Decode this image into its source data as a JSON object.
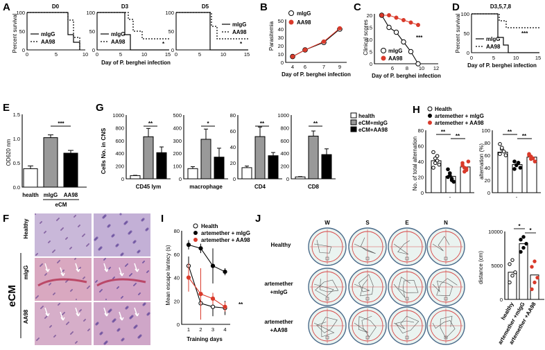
{
  "panels": {
    "A": {
      "label": "A",
      "subtitles": [
        "D0",
        "D3",
        "D5"
      ],
      "ylabel": "Percent survival",
      "xlabel": "Day of P. berghei infection",
      "yticks": [
        "0",
        "50",
        "100"
      ],
      "xticks_d0": [
        "0",
        "5",
        "10"
      ],
      "xticks_d3": [
        "0",
        "5",
        "10",
        "15"
      ],
      "legend": [
        "mIgG",
        "AA98"
      ],
      "sig": [
        "*",
        "*"
      ]
    },
    "B": {
      "label": "B",
      "ylabel": "Parasitemia",
      "xlabel": "Day of P. berghei infection",
      "yticks": [
        "0",
        "10",
        "20",
        "30",
        "40",
        "50"
      ],
      "xticks": [
        "4",
        "6",
        "7",
        "9"
      ],
      "legend": [
        "mIgG",
        "AA98"
      ]
    },
    "C": {
      "label": "C",
      "ylabel": "Clinical scores",
      "xlabel": "Day of P. berghei infection",
      "yticks": [
        "0",
        "5",
        "10",
        "15",
        "20"
      ],
      "xticks": [
        "6",
        "8",
        "10",
        "12"
      ],
      "legend": [
        "mIgG",
        "AA98"
      ],
      "sig": "***"
    },
    "D": {
      "label": "D",
      "subtitle": "D3,5,7,8",
      "ylabel": "Percent survival",
      "xlabel": "Day of P. berghei infection",
      "yticks": [
        "0",
        "50",
        "100"
      ],
      "xticks": [
        "0",
        "5",
        "10",
        "15"
      ],
      "legend": [
        "mIgG",
        "AA98"
      ],
      "sig": "***"
    },
    "E": {
      "label": "E",
      "ylabel": "OD620 nm",
      "yticks": [
        "0.0",
        "0.5",
        "1.0",
        "1.5"
      ],
      "categories": [
        "health",
        "mIgG",
        "AA98"
      ],
      "group": "eCM",
      "sig": "***"
    },
    "G": {
      "label": "G",
      "ylabel": "Cells No. in CNS",
      "legend": [
        "health",
        "eCM+mIgG",
        "eCM+AA98"
      ],
      "subplots": [
        {
          "name": "CD45 lym",
          "yticks": [
            "0",
            "200",
            "400",
            "600",
            "800",
            "1000"
          ],
          "sig": "**"
        },
        {
          "name": "macrophage",
          "yticks": [
            "0",
            "100",
            "200",
            "300",
            "400",
            "500"
          ],
          "sig": "*"
        },
        {
          "name": "CD4",
          "yticks": [
            "0",
            "20",
            "40",
            "60",
            "80"
          ],
          "sig": "**"
        },
        {
          "name": "CD8",
          "yticks": [
            "0",
            "200",
            "400",
            "600",
            "800",
            "1000"
          ],
          "sig": "**"
        }
      ]
    },
    "H": {
      "label": "H",
      "legend": [
        "Health",
        "artemether + mIgG",
        "artemether + AA98"
      ],
      "ylabel1": "No. of total alternation",
      "ylabel2": "alternation (%)",
      "yticks1": [
        "0",
        "20",
        "40",
        "60",
        "80"
      ],
      "yticks2": [
        "0",
        "20",
        "40",
        "60",
        "80",
        "100"
      ],
      "sig": [
        "**",
        "**",
        "**",
        "**"
      ]
    },
    "F": {
      "label": "F",
      "rows": [
        "Healthy",
        "mIgG",
        "AA98"
      ],
      "group": "eCM"
    },
    "I": {
      "label": "I",
      "ylabel": "Mean escape lantecy (s)",
      "xlabel": "Training days",
      "yticks": [
        "0",
        "20",
        "40",
        "60",
        "80"
      ],
      "xticks": [
        "1",
        "2",
        "3",
        "4"
      ],
      "legend": [
        "Health",
        "artemether + mIgG",
        "artemether + AA98"
      ],
      "sig": "**"
    },
    "J": {
      "label": "J",
      "columns": [
        "W",
        "S",
        "E",
        "N"
      ],
      "rows": [
        "Healthy",
        "artemether\n+mIgG",
        "artemether\n+AA98"
      ],
      "row1": "Healthy",
      "row2a": "artemether",
      "row2b": "+mIgG",
      "row3a": "artemether",
      "row3b": "+AA98",
      "ylabel": "distance (cm)",
      "yticks": [
        "0",
        "5000",
        "10000"
      ],
      "categories": [
        "healthy",
        "artemether +mIgG",
        "artemether +AA98"
      ],
      "sig": [
        "*",
        "*"
      ]
    }
  },
  "chart_data": [
    {
      "id": "A-D0",
      "type": "line",
      "title": "D0",
      "x": [
        0,
        5,
        7,
        8,
        10
      ],
      "series": [
        {
          "name": "mIgG",
          "values": [
            100,
            100,
            40,
            20,
            0
          ]
        },
        {
          "name": "AA98",
          "values": [
            100,
            100,
            80,
            33,
            0
          ]
        }
      ],
      "xlim": [
        0,
        10
      ],
      "ylim": [
        0,
        100
      ]
    },
    {
      "id": "A-D3",
      "type": "line",
      "title": "D3",
      "x": [
        0,
        6,
        7,
        8,
        15
      ],
      "series": [
        {
          "name": "mIgG",
          "values": [
            100,
            100,
            40,
            0,
            0
          ]
        },
        {
          "name": "AA98",
          "values": [
            100,
            100,
            80,
            30,
            30
          ]
        }
      ],
      "xlim": [
        0,
        15
      ],
      "ylim": [
        0,
        100
      ]
    },
    {
      "id": "A-D5",
      "type": "line",
      "title": "D5",
      "x": [
        0,
        7,
        8,
        15
      ],
      "series": [
        {
          "name": "mIgG",
          "values": [
            100,
            100,
            0,
            0
          ]
        },
        {
          "name": "AA98",
          "values": [
            100,
            100,
            30,
            30
          ]
        }
      ],
      "xlim": [
        0,
        15
      ],
      "ylim": [
        0,
        100
      ]
    },
    {
      "id": "B",
      "type": "line",
      "x": [
        4,
        6,
        7,
        9
      ],
      "series": [
        {
          "name": "mIgG",
          "values": [
            7,
            15,
            24,
            40
          ]
        },
        {
          "name": "AA98",
          "values": [
            7,
            15,
            25,
            41
          ]
        }
      ],
      "ylim": [
        0,
        50
      ]
    },
    {
      "id": "C",
      "type": "line",
      "x": [
        5,
        6,
        7,
        8,
        9,
        10
      ],
      "series": [
        {
          "name": "mIgG",
          "values": [
            20,
            15,
            13,
            9,
            5,
            0
          ]
        },
        {
          "name": "AA98",
          "values": [
            20,
            20,
            19,
            18,
            17,
            16
          ]
        }
      ],
      "xlim": [
        4,
        12
      ],
      "ylim": [
        0,
        20
      ]
    },
    {
      "id": "D",
      "type": "line",
      "title": "D3,5,7,8",
      "x": [
        0,
        6,
        7,
        8,
        15
      ],
      "series": [
        {
          "name": "mIgG",
          "values": [
            100,
            100,
            40,
            0,
            0
          ]
        },
        {
          "name": "AA98",
          "values": [
            100,
            100,
            75,
            70,
            70
          ]
        }
      ],
      "xlim": [
        0,
        15
      ],
      "ylim": [
        0,
        100
      ]
    },
    {
      "id": "E",
      "type": "bar",
      "categories": [
        "health",
        "mIgG",
        "AA98"
      ],
      "values": [
        0.38,
        1.02,
        0.7
      ],
      "ylim": [
        0,
        1.5
      ]
    },
    {
      "id": "G-CD45",
      "type": "bar",
      "categories": [
        "health",
        "eCM+mIgG",
        "eCM+AA98"
      ],
      "values": [
        50,
        660,
        410
      ],
      "ylim": [
        0,
        1000
      ]
    },
    {
      "id": "G-macrophage",
      "type": "bar",
      "categories": [
        "health",
        "eCM+mIgG",
        "eCM+AA98"
      ],
      "values": [
        80,
        310,
        170
      ],
      "ylim": [
        0,
        500
      ]
    },
    {
      "id": "G-CD4",
      "type": "bar",
      "categories": [
        "health",
        "eCM+mIgG",
        "eCM+AA98"
      ],
      "values": [
        14,
        53,
        29
      ],
      "ylim": [
        0,
        80
      ]
    },
    {
      "id": "G-CD8",
      "type": "bar",
      "categories": [
        "health",
        "eCM+mIgG",
        "eCM+AA98"
      ],
      "values": [
        30,
        670,
        380
      ],
      "ylim": [
        0,
        1000
      ]
    },
    {
      "id": "H1",
      "type": "bar",
      "categories": [
        "Health",
        "artemether + mIgG",
        "artemether + AA98"
      ],
      "values": [
        41,
        21,
        33
      ],
      "ylim": [
        0,
        80
      ]
    },
    {
      "id": "H2",
      "type": "bar",
      "categories": [
        "Health",
        "artemether + mIgG",
        "artemether + AA98"
      ],
      "values": [
        65,
        45,
        57
      ],
      "ylim": [
        0,
        100
      ]
    },
    {
      "id": "I",
      "type": "line",
      "x": [
        1,
        2,
        3,
        4
      ],
      "series": [
        {
          "name": "Health",
          "values": [
            50,
            18,
            15,
            14
          ]
        },
        {
          "name": "artemether + mIgG",
          "values": [
            68,
            65,
            50,
            45
          ]
        },
        {
          "name": "artemether + AA98",
          "values": [
            40,
            26,
            22,
            15
          ]
        }
      ],
      "ylim": [
        0,
        80
      ]
    },
    {
      "id": "J",
      "type": "bar",
      "categories": [
        "healthy",
        "artemether +mIgG",
        "artemether +AA98"
      ],
      "values": [
        4000,
        8200,
        3600
      ],
      "ylim": [
        0,
        10000
      ]
    }
  ],
  "colors": {
    "red": "#d93a2b",
    "black": "#000000",
    "gray": "#999999",
    "tissue": "#c98fb5"
  }
}
